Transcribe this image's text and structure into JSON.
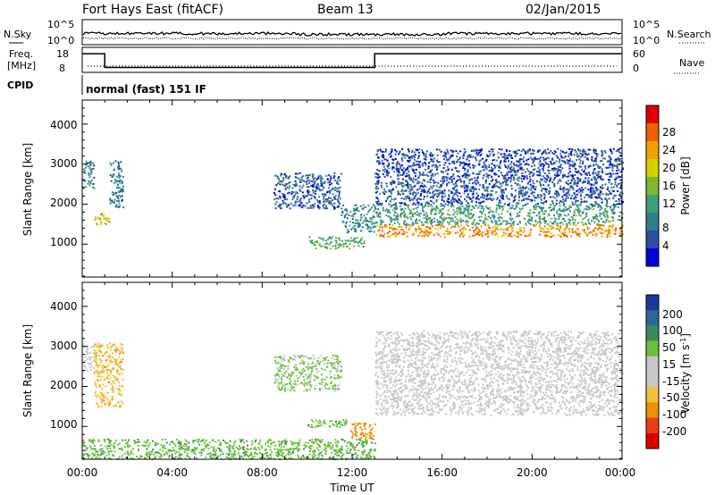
{
  "header": {
    "station": "Fort Hays East (fitACF)",
    "beam": "Beam 13",
    "date": "02/Jan/2015"
  },
  "noise_panel": {
    "left_label": "N.Sky",
    "right_label": "N.Search",
    "ticks_left": [
      "10^5",
      "10^0"
    ],
    "ticks_right": [
      "10^5",
      "10^0"
    ]
  },
  "freq_panel": {
    "left_label_1": "Freq.",
    "left_label_2": "[MHz]",
    "right_label": "Nave",
    "ticks_left": [
      "18",
      "8"
    ],
    "ticks_right": [
      "60",
      "0"
    ],
    "freq_steps": [
      {
        "t0": 0.0,
        "t1": 1.0,
        "mhz": 17.5
      },
      {
        "t0": 1.0,
        "t1": 13.0,
        "mhz": 10.5
      },
      {
        "t0": 13.0,
        "t1": 24.0,
        "mhz": 17.5
      }
    ]
  },
  "cpid": {
    "label": "CPID",
    "text": "normal (fast) 151 IF"
  },
  "axes": {
    "xlabel": "Time UT",
    "xticks": [
      "00:00",
      "04:00",
      "08:00",
      "12:00",
      "16:00",
      "20:00",
      "00:00"
    ],
    "ylabel": "Slant Range [km]",
    "yticks": [
      "1000",
      "2000",
      "3000",
      "4000"
    ]
  },
  "power_colorbar": {
    "label": "Power [dB]",
    "ticks": [
      "28",
      "24",
      "20",
      "16",
      "12",
      "8",
      "4"
    ],
    "colors": [
      "#0000dd",
      "#2c4fa0",
      "#2f7f8f",
      "#3aa07a",
      "#7fb830",
      "#d6d000",
      "#f0a000",
      "#f06000",
      "#e00000"
    ]
  },
  "velocity_colorbar": {
    "label": "Velocity [m s",
    "label_sup": "-1",
    "label_end": "]",
    "ticks": [
      "200",
      "100",
      "50",
      "15",
      "-15",
      "-50",
      "-100",
      "-200"
    ],
    "colors": [
      "#1a3aa0",
      "#2a6a9a",
      "#3d8a60",
      "#6cc040",
      "#c8c8c8",
      "#c8c8c8",
      "#f2c040",
      "#f09000",
      "#e84010",
      "#dd0000"
    ]
  },
  "chart_data": [
    {
      "type": "heatmap",
      "title": "Power",
      "xlabel": "Time UT",
      "ylabel": "Slant Range [km]",
      "xlim": [
        0,
        24
      ],
      "ylim": [
        180,
        4600
      ],
      "colorbar": "Power [dB]",
      "regions": [
        {
          "t0": 0.0,
          "t1": 0.5,
          "r0": 2400,
          "r1": 3100,
          "value": 10
        },
        {
          "t0": 0.5,
          "t1": 1.2,
          "r0": 1500,
          "r1": 1800,
          "value": 20
        },
        {
          "t0": 1.2,
          "t1": 1.8,
          "r0": 1900,
          "r1": 3100,
          "value": 8
        },
        {
          "t0": 8.5,
          "t1": 11.5,
          "r0": 1900,
          "r1": 2800,
          "value": 6
        },
        {
          "t0": 10.0,
          "t1": 12.5,
          "r0": 900,
          "r1": 1200,
          "value": 14
        },
        {
          "t0": 11.5,
          "t1": 13.0,
          "r0": 1300,
          "r1": 2000,
          "value": 10
        },
        {
          "t0": 13.0,
          "t1": 24.0,
          "r0": 1200,
          "r1": 1500,
          "value": 24
        },
        {
          "t0": 13.0,
          "t1": 24.0,
          "r0": 1500,
          "r1": 2000,
          "value": 12
        },
        {
          "t0": 13.0,
          "t1": 24.0,
          "r0": 2000,
          "r1": 2600,
          "value": 6
        },
        {
          "t0": 13.0,
          "t1": 24.0,
          "r0": 2600,
          "r1": 3400,
          "value": 5
        }
      ]
    },
    {
      "type": "heatmap",
      "title": "Velocity",
      "xlabel": "Time UT",
      "ylabel": "Slant Range [km]",
      "xlim": [
        0,
        24
      ],
      "ylim": [
        180,
        4600
      ],
      "colorbar": "Velocity [m s-1]",
      "regions": [
        {
          "t0": 0.0,
          "t1": 0.5,
          "r0": 2400,
          "r1": 3100,
          "value": 0
        },
        {
          "t0": 0.5,
          "t1": 1.8,
          "r0": 1500,
          "r1": 3100,
          "value": -40
        },
        {
          "t0": 8.5,
          "t1": 11.5,
          "r0": 1900,
          "r1": 2800,
          "value": 20
        },
        {
          "t0": 10.0,
          "t1": 11.8,
          "r0": 1000,
          "r1": 1200,
          "value": 40
        },
        {
          "t0": 11.8,
          "t1": 13.0,
          "r0": 700,
          "r1": 1100,
          "value": -70
        },
        {
          "t0": 13.0,
          "t1": 24.0,
          "r0": 1300,
          "r1": 2300,
          "value": 0
        },
        {
          "t0": 13.0,
          "t1": 24.0,
          "r0": 2300,
          "r1": 3400,
          "value": 0
        },
        {
          "t0": 0.0,
          "t1": 13.0,
          "r0": 200,
          "r1": 700,
          "value": 40
        }
      ]
    }
  ]
}
